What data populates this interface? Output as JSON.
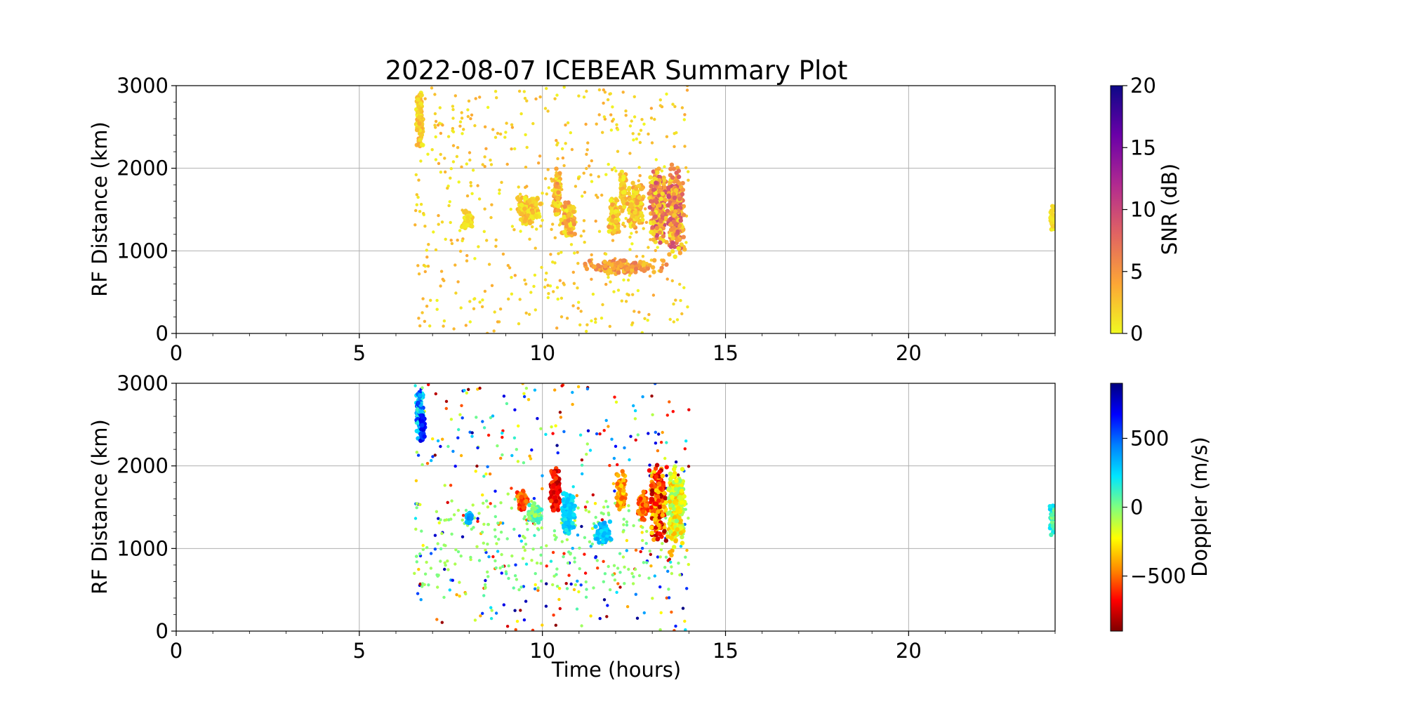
{
  "title": "2022-08-07 ICEBEAR Summary Plot",
  "chart_data": [
    {
      "type": "scatter",
      "name": "snr-panel",
      "xlabel": "",
      "ylabel": "RF Distance (km)",
      "xlim": [
        0,
        24
      ],
      "ylim": [
        0,
        3000
      ],
      "xticks": [
        0,
        5,
        10,
        15,
        20
      ],
      "yticks": [
        0,
        1000,
        2000,
        3000
      ],
      "grid": true,
      "colorbar": {
        "label": "SNR (dB)",
        "range": [
          0,
          20
        ],
        "ticks": [
          0,
          5,
          10,
          15,
          20
        ],
        "colormap": "plasma_r",
        "colors": [
          "#f0f921",
          "#fca636",
          "#e16462",
          "#b12a90",
          "#6a00a8",
          "#0d0887"
        ]
      },
      "clusters": [
        {
          "x": [
            6.55,
            6.75
          ],
          "y": [
            2200,
            2950
          ],
          "c": [
            0,
            4
          ],
          "n": 120
        },
        {
          "x": [
            7.8,
            8.1
          ],
          "y": [
            1250,
            1500
          ],
          "c": [
            0,
            3
          ],
          "n": 60
        },
        {
          "x": [
            9.3,
            10.0
          ],
          "y": [
            1300,
            1700
          ],
          "c": [
            0,
            4
          ],
          "n": 160
        },
        {
          "x": [
            10.3,
            10.5
          ],
          "y": [
            1400,
            2000
          ],
          "c": [
            0,
            6
          ],
          "n": 120
        },
        {
          "x": [
            10.5,
            10.9
          ],
          "y": [
            1150,
            1600
          ],
          "c": [
            0,
            6
          ],
          "n": 140
        },
        {
          "x": [
            11.8,
            12.1
          ],
          "y": [
            1150,
            1650
          ],
          "c": [
            0,
            5
          ],
          "n": 110
        },
        {
          "x": [
            12.1,
            12.3
          ],
          "y": [
            1450,
            2000
          ],
          "c": [
            0,
            4
          ],
          "n": 80
        },
        {
          "x": [
            12.3,
            12.8
          ],
          "y": [
            1250,
            1850
          ],
          "c": [
            0,
            5
          ],
          "n": 150
        },
        {
          "x": [
            12.9,
            13.4
          ],
          "y": [
            1050,
            2050
          ],
          "c": [
            0,
            10
          ],
          "n": 260
        },
        {
          "x": [
            13.4,
            13.9
          ],
          "y": [
            900,
            2050
          ],
          "c": [
            0,
            10
          ],
          "n": 280
        },
        {
          "x": [
            11.0,
            13.5
          ],
          "y": [
            700,
            900
          ],
          "c": [
            2,
            7
          ],
          "n": 140
        },
        {
          "x": [
            23.85,
            24.0
          ],
          "y": [
            1200,
            1600
          ],
          "c": [
            0,
            2
          ],
          "n": 40
        }
      ],
      "scatter": {
        "x": [
          6.5,
          14.0
        ],
        "y": [
          0,
          3000
        ],
        "c": [
          0,
          4
        ],
        "n": 520
      }
    },
    {
      "type": "scatter",
      "name": "doppler-panel",
      "xlabel": "Time (hours)",
      "ylabel": "RF Distance (km)",
      "xlim": [
        0,
        24
      ],
      "ylim": [
        0,
        3000
      ],
      "xticks": [
        0,
        5,
        10,
        15,
        20
      ],
      "yticks": [
        0,
        1000,
        2000,
        3000
      ],
      "grid": true,
      "colorbar": {
        "label": "Doppler (m/s)",
        "range": [
          -900,
          900
        ],
        "ticks": [
          -500,
          0,
          500
        ],
        "tick_labels": [
          "−500",
          "0",
          "500"
        ],
        "colormap": "jet_r",
        "colors": [
          "#7f0000",
          "#ff0000",
          "#ff8c00",
          "#ffff00",
          "#7fff7f",
          "#00e5ff",
          "#0080ff",
          "#0000ff",
          "#00007f"
        ]
      },
      "clusters": [
        {
          "x": [
            6.55,
            6.75
          ],
          "y": [
            2300,
            2950
          ],
          "c": [
            100,
            600
          ],
          "n": 120
        },
        {
          "x": [
            6.65,
            6.8
          ],
          "y": [
            2250,
            2650
          ],
          "c": [
            550,
            750
          ],
          "n": 50
        },
        {
          "x": [
            7.9,
            8.1
          ],
          "y": [
            1300,
            1450
          ],
          "c": [
            250,
            450
          ],
          "n": 40
        },
        {
          "x": [
            9.3,
            9.6
          ],
          "y": [
            1450,
            1700
          ],
          "c": [
            -700,
            -400
          ],
          "n": 70
        },
        {
          "x": [
            9.6,
            10.0
          ],
          "y": [
            1300,
            1550
          ],
          "c": [
            -100,
            150
          ],
          "n": 90
        },
        {
          "x": [
            10.2,
            10.5
          ],
          "y": [
            1400,
            2000
          ],
          "c": [
            -850,
            -550
          ],
          "n": 120
        },
        {
          "x": [
            10.5,
            10.9
          ],
          "y": [
            1150,
            1700
          ],
          "c": [
            150,
            350
          ],
          "n": 140
        },
        {
          "x": [
            11.4,
            11.9
          ],
          "y": [
            1050,
            1350
          ],
          "c": [
            200,
            400
          ],
          "n": 90
        },
        {
          "x": [
            12.0,
            12.3
          ],
          "y": [
            1450,
            1950
          ],
          "c": [
            -550,
            -250
          ],
          "n": 80
        },
        {
          "x": [
            12.6,
            12.9
          ],
          "y": [
            1300,
            1700
          ],
          "c": [
            -650,
            -350
          ],
          "n": 80
        },
        {
          "x": [
            12.9,
            13.4
          ],
          "y": [
            1050,
            2050
          ],
          "c": [
            -850,
            -250
          ],
          "n": 240
        },
        {
          "x": [
            13.4,
            13.9
          ],
          "y": [
            900,
            2050
          ],
          "c": [
            -400,
            0
          ],
          "n": 240
        },
        {
          "x": [
            23.85,
            24.0
          ],
          "y": [
            1150,
            1600
          ],
          "c": [
            -50,
            300
          ],
          "n": 40
        }
      ],
      "scatter": {
        "x": [
          6.5,
          14.0
        ],
        "y": [
          0,
          3000
        ],
        "c": [
          -900,
          900
        ],
        "n": 360
      },
      "scatter_green": {
        "x": [
          6.5,
          14.0
        ],
        "y": [
          500,
          1600
        ],
        "c": [
          -100,
          50
        ],
        "n": 260
      }
    }
  ]
}
